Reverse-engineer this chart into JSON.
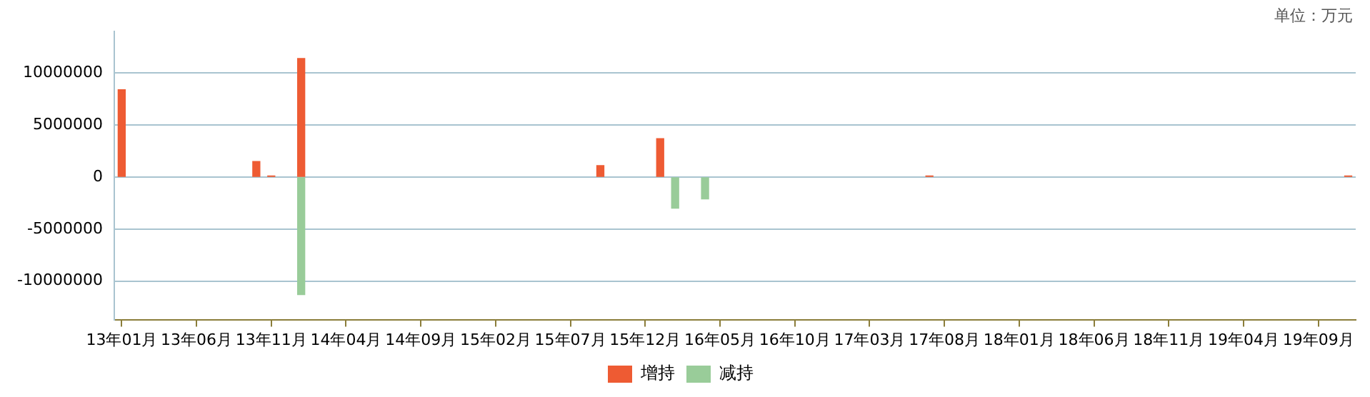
{
  "chart_data": {
    "type": "bar",
    "annotations": [
      "单位：万元"
    ],
    "categories": [
      "13年01月",
      null,
      null,
      null,
      null,
      "13年06月",
      null,
      null,
      null,
      null,
      "13年11月",
      null,
      null,
      null,
      null,
      "14年04月",
      null,
      null,
      null,
      null,
      "14年09月",
      null,
      null,
      null,
      null,
      "15年02月",
      null,
      null,
      null,
      null,
      "15年07月",
      null,
      null,
      null,
      null,
      "15年12月",
      null,
      null,
      null,
      null,
      "16年05月",
      null,
      null,
      null,
      null,
      "16年10月",
      null,
      null,
      null,
      null,
      "17年03月",
      null,
      null,
      null,
      null,
      "17年08月",
      null,
      null,
      null,
      null,
      "18年01月",
      null,
      null,
      null,
      null,
      "18年06月",
      null,
      null,
      null,
      null,
      "18年11月",
      null,
      null,
      null,
      null,
      "19年04月",
      null,
      null,
      null,
      null,
      "19年09月",
      null,
      null
    ],
    "series": [
      {
        "name": "增持",
        "color": "#ee5b33",
        "values": [
          8400000,
          null,
          null,
          null,
          null,
          null,
          null,
          null,
          null,
          1500000,
          100000,
          null,
          11400000,
          null,
          null,
          null,
          null,
          null,
          null,
          null,
          null,
          null,
          null,
          null,
          null,
          null,
          null,
          null,
          null,
          null,
          null,
          null,
          1100000,
          null,
          null,
          null,
          3700000,
          null,
          null,
          null,
          null,
          null,
          null,
          null,
          null,
          null,
          null,
          null,
          null,
          null,
          null,
          null,
          null,
          null,
          100000,
          null,
          null,
          null,
          null,
          null,
          null,
          null,
          null,
          null,
          null,
          null,
          null,
          null,
          null,
          null,
          null,
          null,
          null,
          null,
          null,
          null,
          null,
          null,
          null,
          null,
          null,
          null,
          100000
        ]
      },
      {
        "name": "减持",
        "color": "#99cc99",
        "values": [
          null,
          null,
          null,
          null,
          null,
          null,
          null,
          null,
          null,
          null,
          null,
          null,
          -11300000,
          null,
          null,
          null,
          null,
          null,
          null,
          null,
          null,
          null,
          null,
          null,
          null,
          null,
          null,
          null,
          null,
          null,
          null,
          null,
          null,
          null,
          null,
          null,
          null,
          -3000000,
          null,
          -2100000,
          null,
          null,
          null,
          null,
          null,
          null,
          null,
          null,
          null,
          null,
          null,
          null,
          null,
          null,
          null,
          null,
          null,
          null,
          null,
          null,
          null,
          null,
          null,
          null,
          null,
          null,
          null,
          null,
          null,
          null,
          null,
          null,
          null,
          null,
          null,
          null,
          null,
          null,
          null,
          null,
          null,
          null,
          null
        ]
      }
    ],
    "ylim": [
      -13700000,
      14000000
    ],
    "yticks": [
      -10000000,
      -5000000,
      0,
      5000000,
      10000000
    ],
    "grid": "y",
    "legend": "bottom"
  }
}
